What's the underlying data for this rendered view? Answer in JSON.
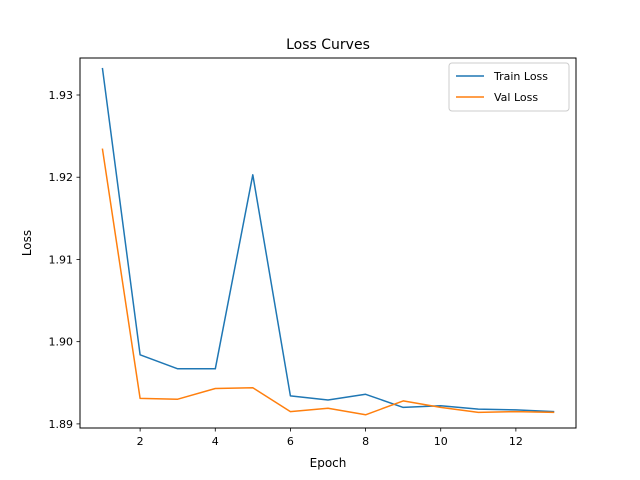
{
  "chart_data": {
    "type": "line",
    "title": "Loss Curves",
    "xlabel": "Epoch",
    "ylabel": "Loss",
    "xlim": [
      0.4,
      13.6
    ],
    "ylim": [
      1.8895,
      1.9345
    ],
    "xticks": [
      2,
      4,
      6,
      8,
      10,
      12
    ],
    "yticks": [
      1.89,
      1.9,
      1.91,
      1.92,
      1.93
    ],
    "grid": false,
    "legend_position": "top-right",
    "x": [
      1,
      2,
      3,
      4,
      5,
      6,
      7,
      8,
      9,
      10,
      11,
      12,
      13
    ],
    "series": [
      {
        "name": "Train Loss",
        "color": "#1f77b4",
        "values": [
          1.9332,
          1.8984,
          1.8967,
          1.8967,
          1.9203,
          1.8934,
          1.8929,
          1.8936,
          1.892,
          1.8922,
          1.8918,
          1.8917,
          1.8915
        ]
      },
      {
        "name": "Val Loss",
        "color": "#ff7f0e",
        "values": [
          1.9234,
          1.8931,
          1.893,
          1.8943,
          1.8944,
          1.8915,
          1.8919,
          1.8911,
          1.8928,
          1.892,
          1.8914,
          1.8915,
          1.8914
        ]
      }
    ]
  }
}
